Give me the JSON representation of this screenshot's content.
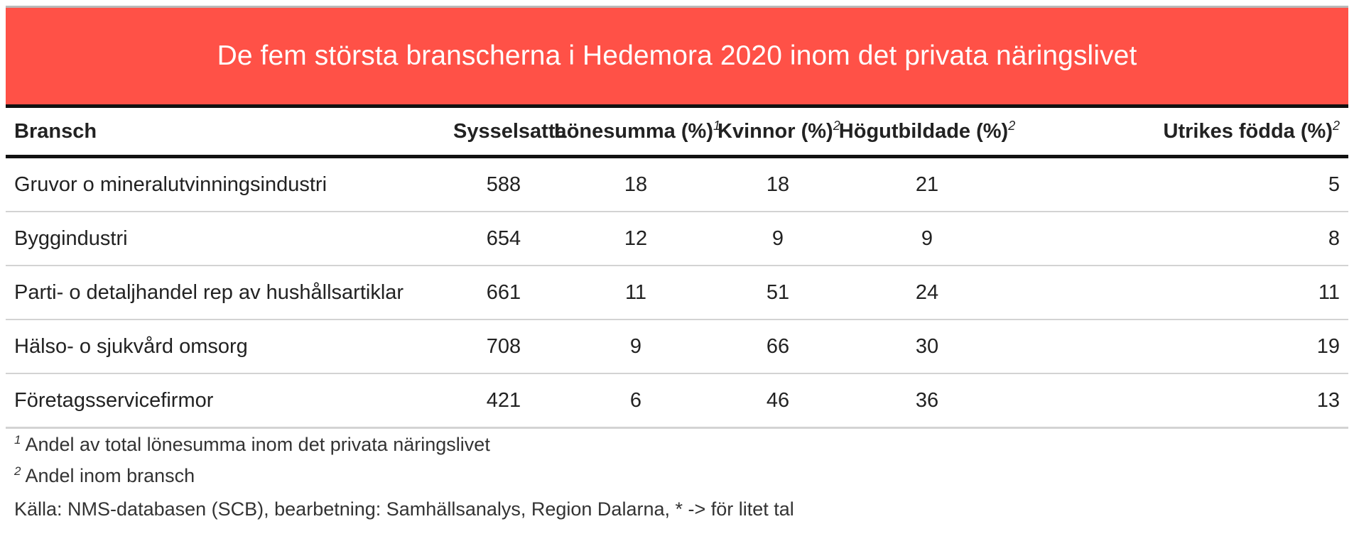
{
  "colors": {
    "header_bg": "#ff5147",
    "header_text": "#ffffff"
  },
  "title": "De fem största branscherna i Hedemora 2020 inom det privata näringslivet",
  "columns": [
    {
      "label": "Bransch",
      "sup": ""
    },
    {
      "label": "Sysselsatta",
      "sup": ""
    },
    {
      "label": "Lönesumma (%)",
      "sup": "1"
    },
    {
      "label": "Kvinnor (%)",
      "sup": "2"
    },
    {
      "label": "Högutbildade (%)",
      "sup": "2"
    },
    {
      "label": "Utrikes födda (%)",
      "sup": "2"
    }
  ],
  "rows": [
    [
      "Gruvor o mineralutvinningsindustri",
      "588",
      "18",
      "18",
      "21",
      "5"
    ],
    [
      "Byggindustri",
      "654",
      "12",
      "9",
      "9",
      "8"
    ],
    [
      "Parti- o detaljhandel rep av hushållsartiklar",
      "661",
      "11",
      "51",
      "24",
      "11"
    ],
    [
      "Hälso- o sjukvård omsorg",
      "708",
      "9",
      "66",
      "30",
      "19"
    ],
    [
      "Företagsservicefirmor",
      "421",
      "6",
      "46",
      "36",
      "13"
    ]
  ],
  "footnotes": [
    {
      "marker": "1",
      "text": "Andel av total lönesumma inom det privata näringslivet"
    },
    {
      "marker": "2",
      "text": "Andel inom bransch"
    }
  ],
  "source": "Källa: NMS-databasen (SCB), bearbetning: Samhällsanalys, Region Dalarna, * -> för litet tal"
}
